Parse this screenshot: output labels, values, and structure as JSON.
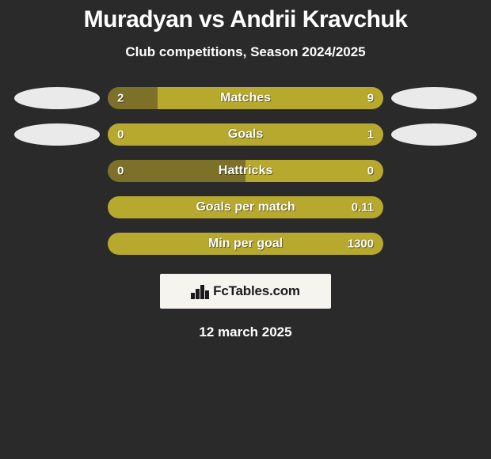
{
  "background_color": "#2a2a2a",
  "title": "Muradyan vs Andrii Kravchuk",
  "subtitle": "Club competitions, Season 2024/2025",
  "date": "12 march 2025",
  "brand": "FcTables.com",
  "avatar_color": "#eaeaea",
  "colors": {
    "left": "#7d7129",
    "right": "#b7a92d"
  },
  "rows": [
    {
      "label": "Matches",
      "left": "2",
      "right": "9",
      "left_pct": 18.2,
      "right_pct": 81.8,
      "show_avatars": true
    },
    {
      "label": "Goals",
      "left": "0",
      "right": "1",
      "left_pct": 0.0,
      "right_pct": 100.0,
      "show_avatars": true
    },
    {
      "label": "Hattricks",
      "left": "0",
      "right": "0",
      "left_pct": 50.0,
      "right_pct": 50.0,
      "show_avatars": false
    },
    {
      "label": "Goals per match",
      "left": "",
      "right": "0.11",
      "left_pct": 0.0,
      "right_pct": 100.0,
      "show_avatars": false
    },
    {
      "label": "Min per goal",
      "left": "",
      "right": "1300",
      "left_pct": 0.0,
      "right_pct": 100.0,
      "show_avatars": false
    }
  ]
}
